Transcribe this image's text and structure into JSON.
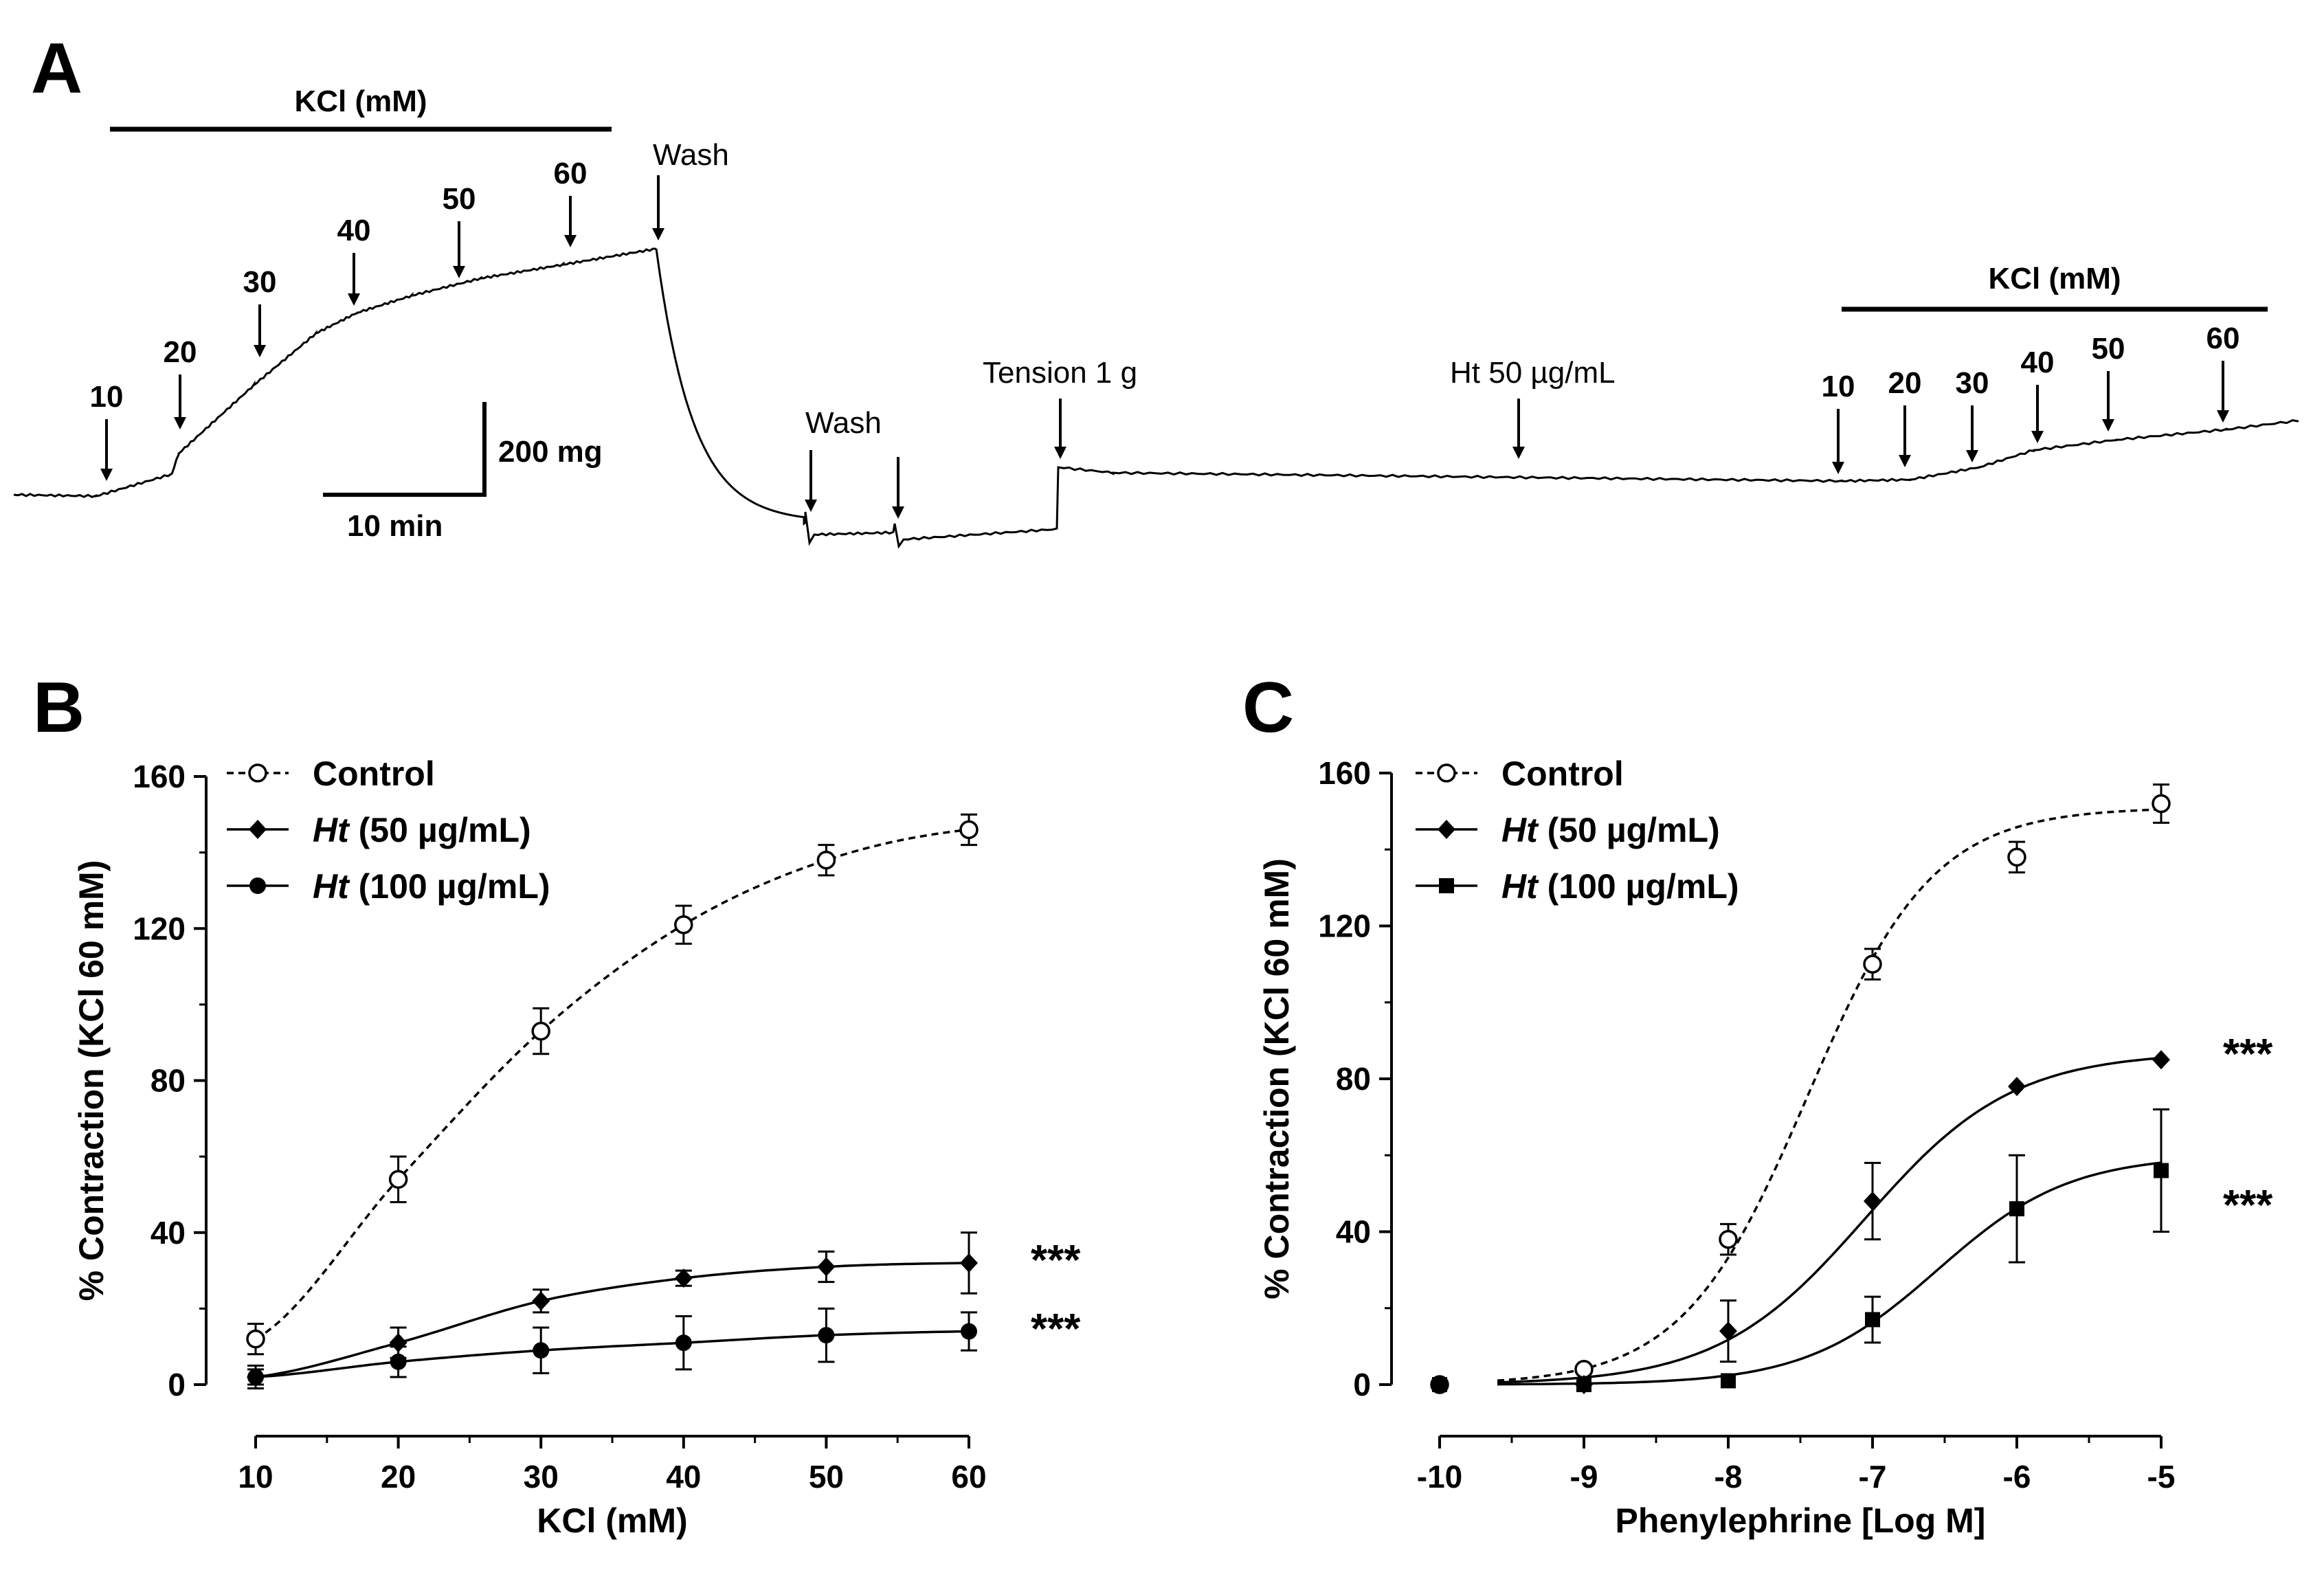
{
  "panel_a": {
    "letter": "A",
    "kcl_bar_label": "KCl (mM)",
    "kcl_arrows": [
      "10",
      "20",
      "30",
      "40",
      "50",
      "60"
    ],
    "wash_label": "Wash",
    "wash_label_2": "Wash",
    "tension_label": "Tension 1 g",
    "ht_label": "Ht 50 µg/mL",
    "kcl_bar_label_2": "KCl (mM)",
    "kcl_arrows_2": [
      "10",
      "20",
      "30",
      "40",
      "50",
      "60"
    ],
    "scale_y_label": "200 mg",
    "scale_x_label": "10 min"
  },
  "chart_data": [
    {
      "panel": "B",
      "type": "line",
      "xlabel": "KCl (mM)",
      "ylabel": "% Contraction (KCl 60 mM)",
      "xlim": [
        10,
        60
      ],
      "ylim": [
        0,
        160
      ],
      "x": [
        10,
        20,
        30,
        40,
        50,
        60
      ],
      "xticks": [
        "10",
        "20",
        "30",
        "40",
        "50",
        "60"
      ],
      "yticks": [
        "0",
        "40",
        "80",
        "120",
        "160"
      ],
      "series": [
        {
          "name": "Control",
          "legend_plain": "Control",
          "legend_italic": "",
          "style": "dashed",
          "marker": "open-circle",
          "values": [
            12,
            54,
            93,
            121,
            138,
            146
          ],
          "errors": [
            4,
            6,
            6,
            5,
            4,
            4
          ]
        },
        {
          "name": "Ht (50 µg/mL)",
          "legend_plain": " (50 µg/mL)",
          "legend_italic": "Ht",
          "style": "solid",
          "marker": "diamond",
          "values": [
            2,
            11,
            22,
            28,
            31,
            32
          ],
          "errors": [
            3,
            4,
            3,
            2,
            4,
            8
          ]
        },
        {
          "name": "Ht (100 µg/mL)",
          "legend_plain": " (100 µg/mL)",
          "legend_italic": "Ht",
          "style": "solid",
          "marker": "circle",
          "values": [
            2,
            6,
            9,
            11,
            13,
            14
          ],
          "errors": [
            2,
            4,
            6,
            7,
            7,
            5
          ]
        }
      ],
      "annotations": [
        "***",
        "***"
      ]
    },
    {
      "panel": "C",
      "type": "line",
      "xlabel": "Phenylephrine [Log M]",
      "ylabel": "% Contraction (KCl 60 mM)",
      "xlim": [
        -10,
        -5
      ],
      "ylim": [
        0,
        160
      ],
      "x": [
        -10,
        -9,
        -8,
        -7,
        -6,
        -5
      ],
      "xticks": [
        "-10",
        "-9",
        "-8",
        "-7",
        "-6",
        "-5"
      ],
      "yticks": [
        "0",
        "40",
        "80",
        "120",
        "160"
      ],
      "series": [
        {
          "name": "Control",
          "legend_plain": "Control",
          "legend_italic": "",
          "style": "dashed",
          "marker": "open-circle",
          "values": [
            0,
            4,
            38,
            110,
            138,
            152
          ],
          "errors": [
            0,
            1,
            4,
            4,
            4,
            5
          ]
        },
        {
          "name": "Ht (50 µg/mL)",
          "legend_plain": " (50 µg/mL)",
          "legend_italic": "Ht",
          "style": "solid",
          "marker": "diamond",
          "values": [
            0,
            0,
            14,
            48,
            78,
            85
          ],
          "errors": [
            0,
            0,
            8,
            10,
            0,
            0
          ]
        },
        {
          "name": "Ht (100 µg/mL)",
          "legend_plain": " (100 µg/mL)",
          "legend_italic": "Ht",
          "style": "solid",
          "marker": "square",
          "values": [
            0,
            0,
            1,
            17,
            46,
            56
          ],
          "errors": [
            0,
            0,
            0,
            6,
            14,
            16
          ]
        }
      ],
      "annotations": [
        "***",
        "***"
      ]
    }
  ]
}
